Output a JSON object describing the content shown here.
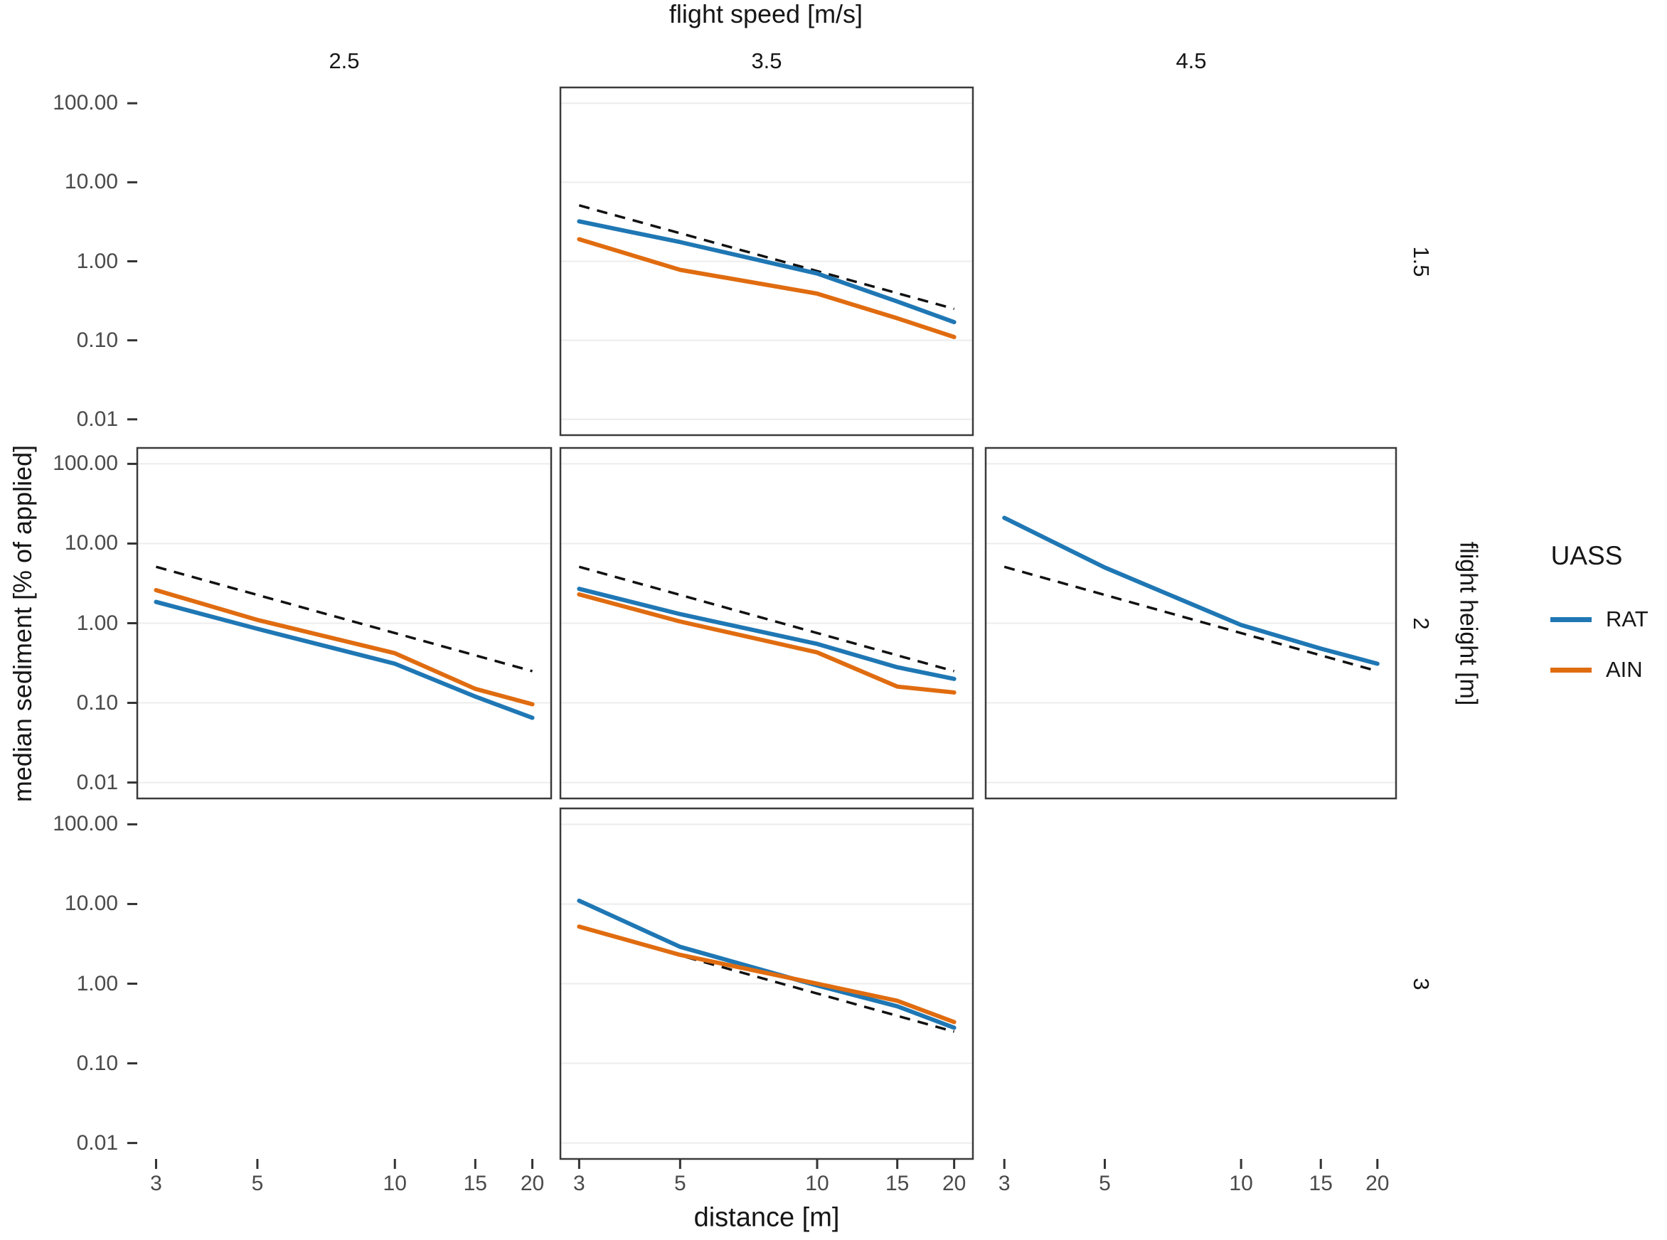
{
  "titles": {
    "top_axis": "flight speed [m/s]",
    "bottom_axis": "distance [m]",
    "left_axis": "median sediment [% of applied]",
    "right_axis": "flight height [m]"
  },
  "facets": {
    "col_labels": [
      "2.5",
      "3.5",
      "4.5"
    ],
    "row_labels": [
      "1.5",
      "2",
      "3"
    ]
  },
  "axes": {
    "x_tick_labels": [
      "3",
      "5",
      "10",
      "15",
      "20"
    ],
    "x_tick_values": [
      3,
      5,
      10,
      15,
      20
    ],
    "y_tick_labels": [
      "100.00",
      "10.00",
      "1.00",
      "0.10",
      "0.01"
    ],
    "y_tick_values": [
      100,
      10,
      1,
      0.1,
      0.01
    ]
  },
  "legend": {
    "title": "UASS",
    "items": [
      {
        "label": "RAT",
        "color": "#1f77b4"
      },
      {
        "label": "AIN",
        "color": "#e06c10"
      }
    ]
  },
  "colors": {
    "reference_line": "#111111",
    "panel_border": "#3b3b3b",
    "gridline": "#ececec",
    "tick_mark": "#333333"
  },
  "chart_data": {
    "type": "line",
    "title": "",
    "xlabel": "distance [m]",
    "ylabel": "median sediment [% of applied]",
    "x_scale": "log10",
    "y_scale": "log10",
    "xlim": [
      3,
      20
    ],
    "ylim": [
      0.01,
      100
    ],
    "grid": "horizontal-major-only",
    "legend_position": "right",
    "facet_col_title": "flight speed [m/s]",
    "facet_row_title": "flight height [m]",
    "x": [
      3,
      5,
      10,
      15,
      20
    ],
    "reference": {
      "name": "reference-dashed",
      "style": "dashed",
      "x": [
        3,
        20
      ],
      "values": [
        5.1,
        0.25
      ]
    },
    "panels": [
      {
        "flight_height": "1.5",
        "flight_speed": "3.5",
        "row": 0,
        "col": 1,
        "series": [
          {
            "name": "RAT",
            "values": [
              3.2,
              1.75,
              0.7,
              0.31,
              0.17
            ]
          },
          {
            "name": "AIN",
            "values": [
              1.9,
              0.78,
              0.39,
              0.19,
              0.11
            ]
          }
        ]
      },
      {
        "flight_height": "2",
        "flight_speed": "2.5",
        "row": 1,
        "col": 0,
        "series": [
          {
            "name": "RAT",
            "values": [
              1.85,
              0.85,
              0.31,
              0.12,
              0.065
            ]
          },
          {
            "name": "AIN",
            "values": [
              2.6,
              1.1,
              0.42,
              0.15,
              0.096
            ]
          }
        ]
      },
      {
        "flight_height": "2",
        "flight_speed": "3.5",
        "row": 1,
        "col": 1,
        "series": [
          {
            "name": "RAT",
            "values": [
              2.7,
              1.3,
              0.55,
              0.28,
              0.2
            ]
          },
          {
            "name": "AIN",
            "values": [
              2.3,
              1.05,
              0.43,
              0.16,
              0.135
            ]
          }
        ]
      },
      {
        "flight_height": "2",
        "flight_speed": "4.5",
        "row": 1,
        "col": 2,
        "series": [
          {
            "name": "RAT",
            "values": [
              21,
              5.0,
              0.95,
              0.48,
              0.31
            ]
          }
        ]
      },
      {
        "flight_height": "3",
        "flight_speed": "3.5",
        "row": 2,
        "col": 1,
        "series": [
          {
            "name": "RAT",
            "values": [
              11,
              2.9,
              0.95,
              0.52,
              0.28
            ]
          },
          {
            "name": "AIN",
            "values": [
              5.2,
              2.3,
              1.0,
              0.61,
              0.33
            ]
          }
        ]
      }
    ]
  }
}
